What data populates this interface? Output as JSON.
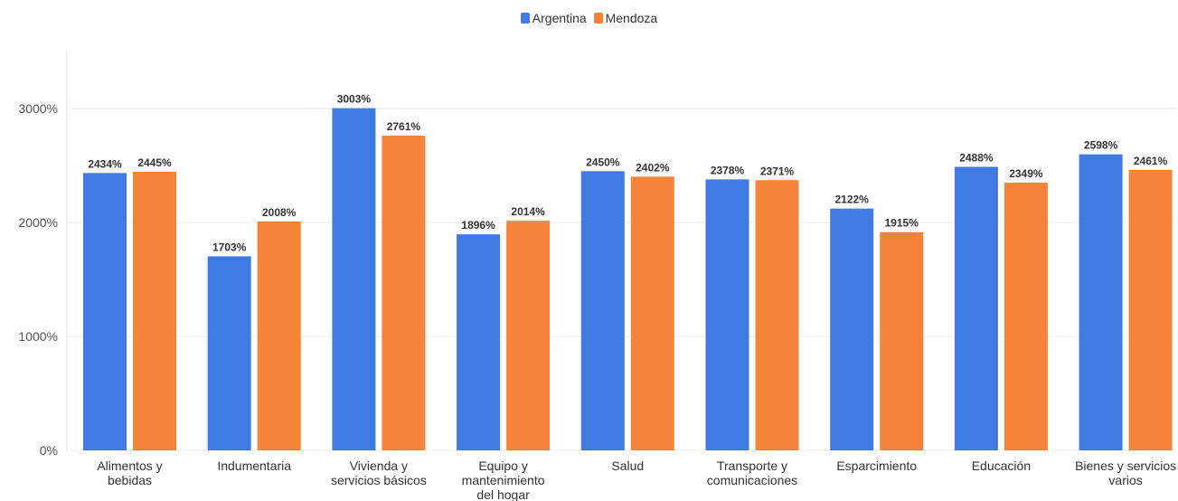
{
  "chart_data": {
    "type": "bar",
    "categories": [
      [
        "Alimentos y",
        "bebidas"
      ],
      [
        "Indumentaria"
      ],
      [
        "Vivienda y",
        "servicios básicos"
      ],
      [
        "Equipo y",
        "mantenimiento",
        "del hogar"
      ],
      [
        "Salud"
      ],
      [
        "Transporte y",
        "comunicaciones"
      ],
      [
        "Esparcimiento"
      ],
      [
        "Educación"
      ],
      [
        "Bienes y servicios",
        "varios"
      ]
    ],
    "series": [
      {
        "name": "Argentina",
        "color": "#3f7be3",
        "values": [
          2434,
          1703,
          3003,
          1896,
          2450,
          2378,
          2122,
          2488,
          2598
        ],
        "labels": [
          "2434%",
          "1703%",
          "3003%",
          "1896%",
          "2450%",
          "2378%",
          "2122%",
          "2488%",
          "2598%"
        ]
      },
      {
        "name": "Mendoza",
        "color": "#f5843a",
        "values": [
          2445,
          2008,
          2761,
          2014,
          2402,
          2371,
          1915,
          2349,
          2461
        ],
        "labels": [
          "2445%",
          "2008%",
          "2761%",
          "2014%",
          "2402%",
          "2371%",
          "1915%",
          "2349%",
          "2461%"
        ]
      }
    ],
    "yticks": [
      "0%",
      "1000%",
      "2000%",
      "3000%"
    ],
    "ytick_values": [
      0,
      1000,
      2000,
      3000
    ],
    "ylim": [
      0,
      3000
    ],
    "xlabel": "",
    "ylabel": "",
    "grid": true,
    "legend_position": "top-center"
  }
}
